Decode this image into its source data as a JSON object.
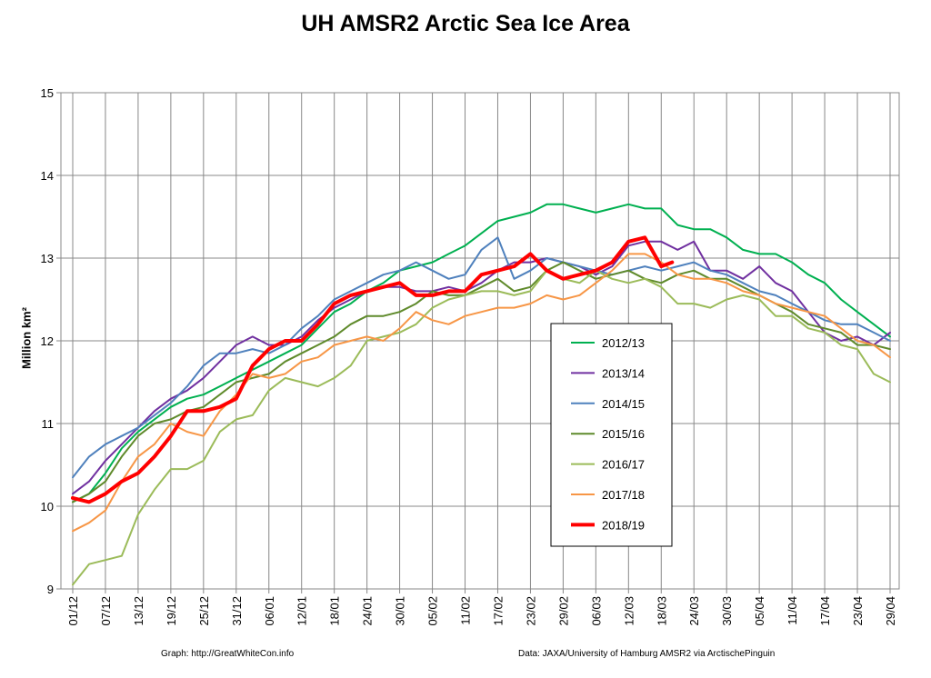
{
  "footer": {
    "left": "Graph: http://GreatWhiteCon.info",
    "right": "Data: JAXA/University of Hamburg AMSR2  via  ArctischePinguin"
  },
  "chart_data": {
    "type": "line",
    "title": "UH AMSR2 Arctic Sea Ice Area",
    "xlabel": "",
    "ylabel": "Million km²",
    "ylim": [
      9,
      15
    ],
    "yticks": [
      9,
      10,
      11,
      12,
      13,
      14,
      15
    ],
    "xticks": [
      "01/12",
      "07/12",
      "13/12",
      "19/12",
      "25/12",
      "31/12",
      "06/01",
      "12/01",
      "18/01",
      "24/01",
      "30/01",
      "05/02",
      "11/02",
      "17/02",
      "23/02",
      "29/02",
      "06/03",
      "12/03",
      "18/03",
      "24/03",
      "30/03",
      "05/04",
      "11/04",
      "17/04",
      "23/04",
      "29/04"
    ],
    "x_days": [
      0,
      6,
      12,
      18,
      24,
      30,
      36,
      42,
      48,
      54,
      60,
      66,
      72,
      78,
      84,
      90,
      96,
      102,
      108,
      114,
      120,
      126,
      132,
      138,
      144,
      150
    ],
    "grid": true,
    "legend_position": "center-right",
    "series": [
      {
        "name": "2012/13",
        "color": "#00b050",
        "width": 2,
        "x": [
          0,
          3,
          6,
          9,
          12,
          15,
          18,
          21,
          24,
          27,
          30,
          33,
          36,
          39,
          42,
          45,
          48,
          51,
          54,
          57,
          60,
          63,
          66,
          69,
          72,
          75,
          78,
          81,
          84,
          87,
          90,
          93,
          96,
          99,
          102,
          105,
          108,
          111,
          114,
          117,
          120,
          123,
          126,
          129,
          132,
          135,
          138,
          141,
          144,
          147,
          150
        ],
        "values": [
          10.05,
          10.15,
          10.4,
          10.7,
          10.9,
          11.05,
          11.2,
          11.3,
          11.35,
          11.45,
          11.55,
          11.65,
          11.75,
          11.85,
          11.95,
          12.15,
          12.35,
          12.45,
          12.6,
          12.7,
          12.85,
          12.9,
          12.95,
          13.05,
          13.15,
          13.3,
          13.45,
          13.5,
          13.55,
          13.65,
          13.65,
          13.6,
          13.55,
          13.6,
          13.65,
          13.6,
          13.6,
          13.4,
          13.35,
          13.35,
          13.25,
          13.1,
          13.05,
          13.05,
          12.95,
          12.8,
          12.7,
          12.5,
          12.35,
          12.2,
          12.05
        ]
      },
      {
        "name": "2013/14",
        "color": "#7030a0",
        "width": 2,
        "x": [
          0,
          3,
          6,
          9,
          12,
          15,
          18,
          21,
          24,
          27,
          30,
          33,
          36,
          39,
          42,
          45,
          48,
          51,
          54,
          57,
          60,
          63,
          66,
          69,
          72,
          75,
          78,
          81,
          84,
          87,
          90,
          93,
          96,
          99,
          102,
          105,
          108,
          111,
          114,
          117,
          120,
          123,
          126,
          129,
          132,
          135,
          138,
          141,
          144,
          147,
          150
        ],
        "values": [
          10.15,
          10.3,
          10.55,
          10.75,
          10.95,
          11.15,
          11.3,
          11.4,
          11.55,
          11.75,
          11.95,
          12.05,
          11.95,
          11.95,
          12.05,
          12.25,
          12.4,
          12.5,
          12.6,
          12.65,
          12.65,
          12.6,
          12.6,
          12.65,
          12.6,
          12.7,
          12.85,
          12.95,
          12.95,
          13.0,
          12.95,
          12.9,
          12.8,
          12.9,
          13.15,
          13.2,
          13.2,
          13.1,
          13.2,
          12.85,
          12.85,
          12.75,
          12.9,
          12.7,
          12.6,
          12.35,
          12.1,
          12.0,
          12.05,
          11.95,
          12.1
        ]
      },
      {
        "name": "2014/15",
        "color": "#4f81bd",
        "width": 2,
        "x": [
          0,
          3,
          6,
          9,
          12,
          15,
          18,
          21,
          24,
          27,
          30,
          33,
          36,
          39,
          42,
          45,
          48,
          51,
          54,
          57,
          60,
          63,
          66,
          69,
          72,
          75,
          78,
          81,
          84,
          87,
          90,
          93,
          96,
          99,
          102,
          105,
          108,
          111,
          114,
          117,
          120,
          123,
          126,
          129,
          132,
          135,
          138,
          141,
          144,
          147,
          150
        ],
        "values": [
          10.35,
          10.6,
          10.75,
          10.85,
          10.95,
          11.1,
          11.25,
          11.45,
          11.7,
          11.85,
          11.85,
          11.9,
          11.85,
          11.95,
          12.15,
          12.3,
          12.5,
          12.6,
          12.7,
          12.8,
          12.85,
          12.95,
          12.85,
          12.75,
          12.8,
          13.1,
          13.25,
          12.75,
          12.85,
          13.0,
          12.95,
          12.9,
          12.85,
          12.8,
          12.85,
          12.9,
          12.85,
          12.9,
          12.95,
          12.85,
          12.8,
          12.7,
          12.6,
          12.55,
          12.45,
          12.35,
          12.25,
          12.2,
          12.2,
          12.1,
          12.0
        ]
      },
      {
        "name": "2015/16",
        "color": "#5f8a2b",
        "width": 2,
        "x": [
          0,
          3,
          6,
          9,
          12,
          15,
          18,
          21,
          24,
          27,
          30,
          33,
          36,
          39,
          42,
          45,
          48,
          51,
          54,
          57,
          60,
          63,
          66,
          69,
          72,
          75,
          78,
          81,
          84,
          87,
          90,
          93,
          96,
          99,
          102,
          105,
          108,
          111,
          114,
          117,
          120,
          123,
          126,
          129,
          132,
          135,
          138,
          141,
          144,
          147,
          150
        ],
        "values": [
          10.05,
          10.15,
          10.3,
          10.6,
          10.85,
          11.0,
          11.05,
          11.15,
          11.2,
          11.35,
          11.5,
          11.55,
          11.6,
          11.75,
          11.85,
          11.95,
          12.05,
          12.2,
          12.3,
          12.3,
          12.35,
          12.45,
          12.6,
          12.55,
          12.55,
          12.65,
          12.75,
          12.6,
          12.65,
          12.85,
          12.95,
          12.85,
          12.75,
          12.8,
          12.85,
          12.75,
          12.7,
          12.8,
          12.85,
          12.75,
          12.75,
          12.65,
          12.55,
          12.45,
          12.35,
          12.2,
          12.15,
          12.1,
          11.95,
          11.95,
          11.9
        ]
      },
      {
        "name": "2016/17",
        "color": "#9bbb59",
        "width": 2,
        "x": [
          0,
          3,
          6,
          9,
          12,
          15,
          18,
          21,
          24,
          27,
          30,
          33,
          36,
          39,
          42,
          45,
          48,
          51,
          54,
          57,
          60,
          63,
          66,
          69,
          72,
          75,
          78,
          81,
          84,
          87,
          90,
          93,
          96,
          99,
          102,
          105,
          108,
          111,
          114,
          117,
          120,
          123,
          126,
          129,
          132,
          135,
          138,
          141,
          144,
          147,
          150
        ],
        "values": [
          9.05,
          9.3,
          9.35,
          9.4,
          9.9,
          10.2,
          10.45,
          10.45,
          10.55,
          10.9,
          11.05,
          11.1,
          11.4,
          11.55,
          11.5,
          11.45,
          11.55,
          11.7,
          12.0,
          12.05,
          12.1,
          12.2,
          12.4,
          12.5,
          12.55,
          12.6,
          12.6,
          12.55,
          12.6,
          12.85,
          12.75,
          12.7,
          12.85,
          12.75,
          12.7,
          12.75,
          12.65,
          12.45,
          12.45,
          12.4,
          12.5,
          12.55,
          12.5,
          12.3,
          12.3,
          12.15,
          12.1,
          11.95,
          11.9,
          11.6,
          11.5
        ]
      },
      {
        "name": "2017/18",
        "color": "#f79646",
        "width": 2,
        "x": [
          0,
          3,
          6,
          9,
          12,
          15,
          18,
          21,
          24,
          27,
          30,
          33,
          36,
          39,
          42,
          45,
          48,
          51,
          54,
          57,
          60,
          63,
          66,
          69,
          72,
          75,
          78,
          81,
          84,
          87,
          90,
          93,
          96,
          99,
          102,
          105,
          108,
          111,
          114,
          117,
          120,
          123,
          126,
          129,
          132,
          135,
          138,
          141,
          144,
          147,
          150
        ],
        "values": [
          9.7,
          9.8,
          9.95,
          10.3,
          10.6,
          10.75,
          11.0,
          10.9,
          10.85,
          11.15,
          11.35,
          11.6,
          11.55,
          11.6,
          11.75,
          11.8,
          11.95,
          12.0,
          12.05,
          12.0,
          12.15,
          12.35,
          12.25,
          12.2,
          12.3,
          12.35,
          12.4,
          12.4,
          12.45,
          12.55,
          12.5,
          12.55,
          12.7,
          12.85,
          13.05,
          13.05,
          12.95,
          12.8,
          12.75,
          12.75,
          12.7,
          12.6,
          12.55,
          12.45,
          12.4,
          12.35,
          12.3,
          12.15,
          12.0,
          11.95,
          11.8
        ]
      },
      {
        "name": "2018/19",
        "color": "#ff0000",
        "width": 4,
        "x": [
          0,
          3,
          6,
          9,
          12,
          15,
          18,
          21,
          24,
          27,
          30,
          33,
          36,
          39,
          42,
          45,
          48,
          51,
          54,
          57,
          60,
          63,
          66,
          69,
          72,
          75,
          78,
          81,
          84,
          87,
          90,
          93,
          96,
          99,
          102,
          105,
          108,
          110
        ],
        "values": [
          10.1,
          10.05,
          10.15,
          10.3,
          10.4,
          10.6,
          10.85,
          11.15,
          11.15,
          11.2,
          11.3,
          11.7,
          11.9,
          12.0,
          12.0,
          12.2,
          12.45,
          12.55,
          12.6,
          12.65,
          12.7,
          12.55,
          12.55,
          12.6,
          12.6,
          12.8,
          12.85,
          12.9,
          13.05,
          12.85,
          12.75,
          12.8,
          12.85,
          12.95,
          13.2,
          13.25,
          12.9,
          12.95
        ]
      }
    ]
  }
}
